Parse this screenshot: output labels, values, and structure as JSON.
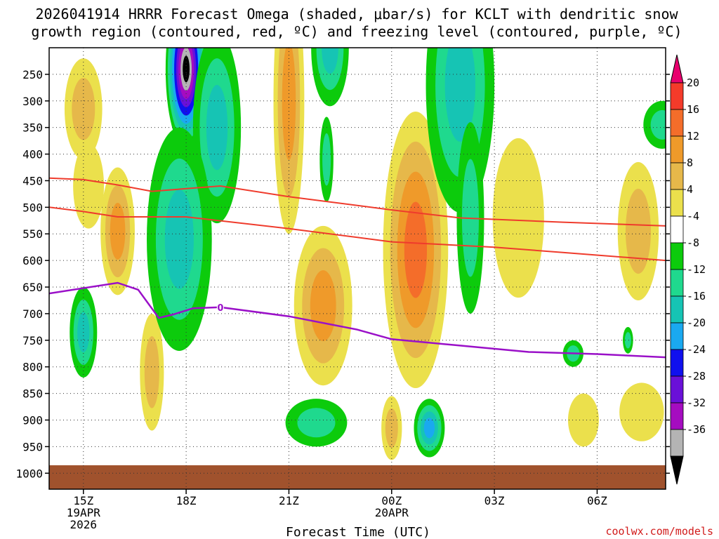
{
  "chart_data": {
    "type": "heatmap",
    "title_lines": [
      "2026041914 HRRR Forecast Omega (shaded, μbar/s) for KCLT with dendritic snow",
      "growth region (contoured, red, ºC) and freezing level (contoured, purple, ºC)"
    ],
    "xlabel": "Forecast Time (UTC)",
    "x_ticks": [
      {
        "hour": 15,
        "label": "15Z",
        "sub": [
          "19APR",
          "2026"
        ]
      },
      {
        "hour": 18,
        "label": "18Z",
        "sub": []
      },
      {
        "hour": 21,
        "label": "21Z",
        "sub": []
      },
      {
        "hour": 24,
        "label": "00Z",
        "sub": [
          "20APR"
        ]
      },
      {
        "hour": 27,
        "label": "03Z",
        "sub": []
      },
      {
        "hour": 30,
        "label": "06Z",
        "sub": []
      }
    ],
    "x_range": [
      14,
      32
    ],
    "y_ticks": [
      250,
      300,
      350,
      400,
      450,
      500,
      550,
      600,
      650,
      700,
      750,
      800,
      850,
      900,
      950,
      1000
    ],
    "ylim": [
      200,
      1030
    ],
    "ground_level_hpa": 985,
    "colorbar": {
      "levels": [
        "20",
        "16",
        "12",
        "8",
        "4",
        "-4",
        "-8",
        "-12",
        "-16",
        "-20",
        "-24",
        "-28",
        "-32",
        "-36"
      ],
      "colors": [
        "#e8006e",
        "#f43b2a",
        "#f46d2a",
        "#ef9a2a",
        "#e6b84a",
        "#ebe04c",
        "#ffffff",
        "#0ccb0c",
        "#1fd98e",
        "#16c4b4",
        "#1aa9f0",
        "#1010ee",
        "#6a10d8",
        "#a50cc0",
        "#b4b4b4",
        "#000000"
      ]
    },
    "blobs": [
      {
        "hour": 15.0,
        "p": 315,
        "rx": 0.55,
        "ry": 95,
        "v": 8
      },
      {
        "hour": 15.15,
        "p": 460,
        "rx": 0.45,
        "ry": 80,
        "v": 4
      },
      {
        "hour": 16.0,
        "p": 545,
        "rx": 0.5,
        "ry": 120,
        "v": 12
      },
      {
        "hour": 17.0,
        "p": 810,
        "rx": 0.35,
        "ry": 110,
        "v": 8
      },
      {
        "hour": 15.0,
        "p": 735,
        "rx": 0.4,
        "ry": 85,
        "v": -12
      },
      {
        "hour": 18.0,
        "p": 240,
        "rx": 0.6,
        "ry": 150,
        "v": -36
      },
      {
        "hour": 18.9,
        "p": 350,
        "rx": 0.7,
        "ry": 180,
        "v": -12
      },
      {
        "hour": 17.8,
        "p": 560,
        "rx": 0.95,
        "ry": 210,
        "v": -12
      },
      {
        "hour": 21.0,
        "p": 300,
        "rx": 0.45,
        "ry": 250,
        "v": 12
      },
      {
        "hour": 22.2,
        "p": 200,
        "rx": 0.55,
        "ry": 110,
        "v": -12
      },
      {
        "hour": 22.1,
        "p": 410,
        "rx": 0.2,
        "ry": 80,
        "v": -8
      },
      {
        "hour": 22.0,
        "p": 685,
        "rx": 0.85,
        "ry": 150,
        "v": 12
      },
      {
        "hour": 21.8,
        "p": 905,
        "rx": 0.9,
        "ry": 45,
        "v": -8
      },
      {
        "hour": 24.7,
        "p": 580,
        "rx": 0.95,
        "ry": 260,
        "v": 16
      },
      {
        "hour": 24.0,
        "p": 915,
        "rx": 0.3,
        "ry": 60,
        "v": 8
      },
      {
        "hour": 25.1,
        "p": 915,
        "rx": 0.45,
        "ry": 55,
        "v": -16
      },
      {
        "hour": 26.0,
        "p": 270,
        "rx": 1.0,
        "ry": 240,
        "v": -12
      },
      {
        "hour": 26.3,
        "p": 520,
        "rx": 0.4,
        "ry": 180,
        "v": -8
      },
      {
        "hour": 27.7,
        "p": 520,
        "rx": 0.75,
        "ry": 150,
        "v": 4
      },
      {
        "hour": 29.6,
        "p": 900,
        "rx": 0.45,
        "ry": 50,
        "v": 4
      },
      {
        "hour": 29.3,
        "p": 775,
        "rx": 0.3,
        "ry": 25,
        "v": -8
      },
      {
        "hour": 30.9,
        "p": 750,
        "rx": 0.15,
        "ry": 25,
        "v": -8
      },
      {
        "hour": 31.2,
        "p": 545,
        "rx": 0.6,
        "ry": 130,
        "v": 8
      },
      {
        "hour": 31.3,
        "p": 885,
        "rx": 0.65,
        "ry": 55,
        "v": 4
      },
      {
        "hour": 31.9,
        "p": 345,
        "rx": 0.55,
        "ry": 45,
        "v": -8
      }
    ],
    "dgz_top": [
      [
        14,
        445
      ],
      [
        15,
        448
      ],
      [
        16,
        458
      ],
      [
        17,
        470
      ],
      [
        19,
        460
      ],
      [
        21,
        480
      ],
      [
        24,
        505
      ],
      [
        26,
        520
      ],
      [
        29,
        528
      ],
      [
        32,
        535
      ]
    ],
    "dgz_bottom": [
      [
        14,
        500
      ],
      [
        15,
        508
      ],
      [
        16,
        518
      ],
      [
        18,
        518
      ],
      [
        21,
        540
      ],
      [
        24,
        565
      ],
      [
        27,
        575
      ],
      [
        29,
        585
      ],
      [
        32,
        600
      ]
    ],
    "freezing_level": [
      [
        14,
        662
      ],
      [
        16,
        642
      ],
      [
        16.6,
        655
      ],
      [
        17.2,
        708
      ],
      [
        17.6,
        702
      ],
      [
        18.2,
        690
      ],
      [
        19.0,
        688
      ],
      [
        21.0,
        705
      ],
      [
        23.0,
        730
      ],
      [
        24.0,
        748
      ],
      [
        26.0,
        760
      ],
      [
        28.0,
        772
      ],
      [
        30.0,
        776
      ],
      [
        32.0,
        782
      ]
    ],
    "freezing_label": "0",
    "freezing_label_hour": 19.0,
    "credit": "coolwx.com/models"
  }
}
